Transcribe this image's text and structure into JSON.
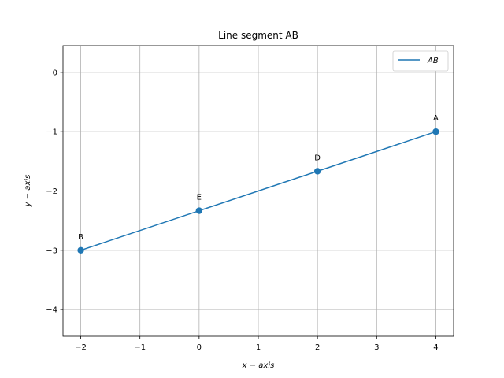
{
  "chart_data": {
    "type": "line",
    "title": "Line segment AB",
    "xlabel": "x − axis",
    "ylabel": "y − axis",
    "xlim": [
      -2.3,
      4.3
    ],
    "ylim": [
      -4.45,
      0.45
    ],
    "xticks": [
      -2,
      -1,
      0,
      1,
      2,
      3,
      4
    ],
    "yticks": [
      0,
      -1,
      -2,
      -3,
      -4
    ],
    "xtick_labels": [
      "−2",
      "−1",
      "0",
      "1",
      "2",
      "3",
      "4"
    ],
    "ytick_labels": [
      "0",
      "−1",
      "−2",
      "−3",
      "−4"
    ],
    "grid": true,
    "legend_position": "top-right",
    "series": [
      {
        "name": "AB",
        "color": "#1f77b4",
        "x": [
          4,
          -2
        ],
        "y": [
          -1,
          -3
        ]
      }
    ],
    "points": [
      {
        "label": "A",
        "x": 4,
        "y": -1
      },
      {
        "label": "B",
        "x": -2,
        "y": -3
      },
      {
        "label": "D",
        "x": 2,
        "y": -1.667
      },
      {
        "label": "E",
        "x": 0,
        "y": -2.333
      }
    ]
  }
}
